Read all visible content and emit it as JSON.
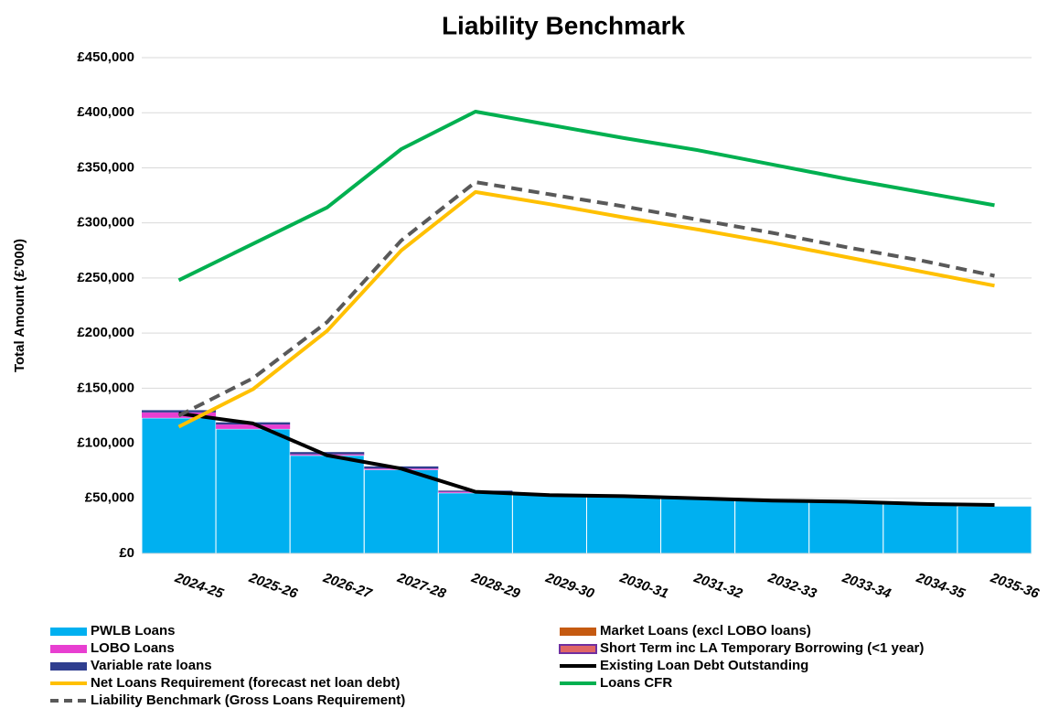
{
  "chart_data": {
    "type": "bar",
    "title": "Liability Benchmark",
    "y_label": "Total Amount (£'000)",
    "categories": [
      "2024-25",
      "2025-26",
      "2026-27",
      "2027-28",
      "2028-29",
      "2029-30",
      "2030-31",
      "2031-32",
      "2032-33",
      "2033-34",
      "2034-35",
      "2035-36"
    ],
    "ylim": [
      0,
      450000
    ],
    "yticks": [
      {
        "value": 0,
        "label": "£0"
      },
      {
        "value": 50000,
        "label": "£50,000"
      },
      {
        "value": 100000,
        "label": "£100,000"
      },
      {
        "value": 150000,
        "label": "£150,000"
      },
      {
        "value": 200000,
        "label": "£200,000"
      },
      {
        "value": 250000,
        "label": "£250,000"
      },
      {
        "value": 300000,
        "label": "£300,000"
      },
      {
        "value": 350000,
        "label": "£350,000"
      },
      {
        "value": 400000,
        "label": "£400,000"
      },
      {
        "value": 450000,
        "label": "£450,000"
      }
    ],
    "grid": true,
    "series": [
      {
        "name": "PWLB Loans",
        "type": "bar",
        "color": "#00b0f0",
        "values": [
          123000,
          113000,
          89000,
          76000,
          55000,
          54000,
          52000,
          51000,
          48000,
          47000,
          45000,
          43000
        ]
      },
      {
        "name": "Market Loans (excl LOBO loans)",
        "type": "bar",
        "color": "#c55a11",
        "values": [
          0,
          0,
          0,
          0,
          0,
          0,
          0,
          0,
          0,
          0,
          0,
          0
        ]
      },
      {
        "name": "LOBO Loans",
        "type": "bar",
        "color": "#e83fd1",
        "values": [
          5000,
          4000,
          1000,
          1000,
          1000,
          0,
          0,
          0,
          0,
          0,
          0,
          0
        ]
      },
      {
        "name": "Short Term inc LA Temporary Borrowing (<1 year)",
        "type": "bar",
        "color": "#e06666",
        "values": [
          0,
          0,
          0,
          0,
          0,
          0,
          0,
          0,
          0,
          0,
          0,
          0
        ]
      },
      {
        "name": "Variable rate loans",
        "type": "bar",
        "color": "#2f3e8f",
        "values": [
          2000,
          2000,
          2000,
          2000,
          1000,
          0,
          0,
          0,
          0,
          0,
          0,
          0
        ]
      },
      {
        "name": "Existing Loan Debt Outstanding",
        "type": "line",
        "color": "#000000",
        "values": [
          127000,
          118000,
          89000,
          77000,
          56000,
          53000,
          52000,
          50000,
          48000,
          47000,
          45000,
          44000
        ]
      },
      {
        "name": "Net Loans Requirement (forecast net loan debt)",
        "type": "line",
        "color": "#ffc000",
        "values": [
          115000,
          149000,
          202000,
          275000,
          328000,
          317000,
          305000,
          294000,
          282000,
          269000,
          256000,
          243000
        ]
      },
      {
        "name": "Loans CFR",
        "type": "line",
        "color": "#00b050",
        "values": [
          248000,
          281000,
          314000,
          367000,
          401000,
          389000,
          377000,
          366000,
          353000,
          340000,
          328000,
          316000
        ]
      },
      {
        "name": "Liability Benchmark (Gross Loans Requirement)",
        "type": "line",
        "color": "#595959",
        "dashed": true,
        "values": [
          125000,
          159000,
          210000,
          284000,
          337000,
          326000,
          315000,
          303000,
          291000,
          278000,
          266000,
          252000
        ]
      }
    ]
  }
}
